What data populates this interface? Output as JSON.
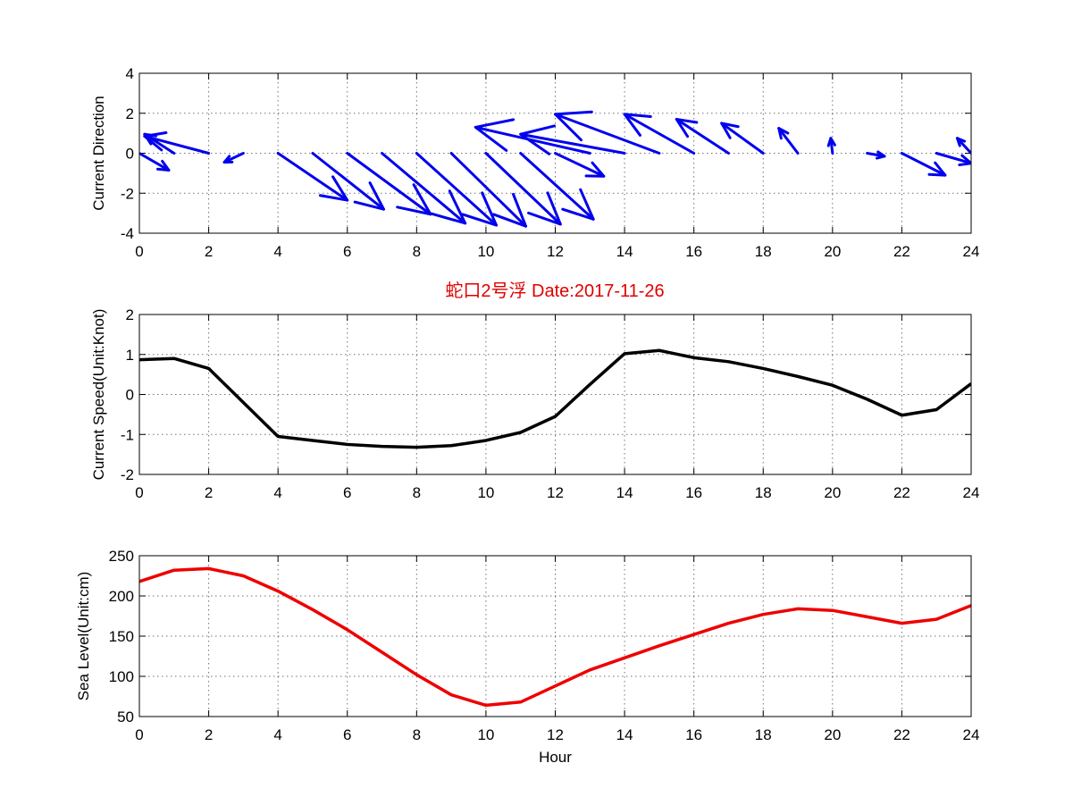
{
  "figure": {
    "title": "蛇口2号浮   Date:2017-11-26",
    "title_color": "#e00000"
  },
  "chart_data": [
    {
      "type": "quiver",
      "ylabel": "Current Direction",
      "xlim": [
        0,
        24
      ],
      "ylim": [
        -4,
        4
      ],
      "x_ticks": [
        0,
        2,
        4,
        6,
        8,
        10,
        12,
        14,
        16,
        18,
        20,
        22,
        24
      ],
      "y_ticks": [
        -4,
        -2,
        0,
        2,
        4
      ],
      "grid": true,
      "color": "#0000ee",
      "arrows": [
        {
          "x": 0,
          "u": 0.85,
          "v": -0.85
        },
        {
          "x": 1,
          "u": -0.85,
          "v": 0.95
        },
        {
          "x": 2,
          "u": -1.85,
          "v": 0.85
        },
        {
          "x": 3,
          "u": -0.55,
          "v": -0.45
        },
        {
          "x": 4,
          "u": 2.0,
          "v": -2.35
        },
        {
          "x": 5,
          "u": 2.05,
          "v": -2.8
        },
        {
          "x": 6,
          "u": 2.4,
          "v": -3.05
        },
        {
          "x": 7,
          "u": 2.4,
          "v": -3.5
        },
        {
          "x": 8,
          "u": 2.3,
          "v": -3.6
        },
        {
          "x": 9,
          "u": 2.15,
          "v": -3.65
        },
        {
          "x": 10,
          "u": 2.15,
          "v": -3.55
        },
        {
          "x": 11,
          "u": 2.1,
          "v": -3.3
        },
        {
          "x": 12,
          "u": 1.4,
          "v": -1.15
        },
        {
          "x": 13,
          "u": -3.3,
          "v": 1.3
        },
        {
          "x": 14,
          "u": -3.0,
          "v": 0.95
        },
        {
          "x": 15,
          "u": -3.0,
          "v": 1.95
        },
        {
          "x": 16,
          "u": -2.0,
          "v": 1.95
        },
        {
          "x": 17,
          "u": -1.5,
          "v": 1.7
        },
        {
          "x": 18,
          "u": -1.2,
          "v": 1.5
        },
        {
          "x": 19,
          "u": -0.55,
          "v": 1.25
        },
        {
          "x": 20,
          "u": -0.05,
          "v": 0.75
        },
        {
          "x": 21,
          "u": 0.5,
          "v": -0.15
        },
        {
          "x": 22,
          "u": 1.25,
          "v": -1.1
        },
        {
          "x": 23,
          "u": 1.0,
          "v": -0.5
        },
        {
          "x": 24,
          "u": -0.4,
          "v": 0.75
        }
      ]
    },
    {
      "type": "line",
      "ylabel": "Current Speed(Unit:Knot)",
      "xlim": [
        0,
        24
      ],
      "ylim": [
        -2,
        2
      ],
      "x_ticks": [
        0,
        2,
        4,
        6,
        8,
        10,
        12,
        14,
        16,
        18,
        20,
        22,
        24
      ],
      "y_ticks": [
        -2,
        -1,
        0,
        1,
        2
      ],
      "grid": true,
      "color": "#000000",
      "x": [
        0,
        1,
        2,
        3,
        4,
        5,
        6,
        7,
        8,
        9,
        10,
        11,
        12,
        13,
        14,
        15,
        16,
        17,
        18,
        19,
        20,
        21,
        22,
        23,
        24
      ],
      "y": [
        0.87,
        0.9,
        0.65,
        -0.2,
        -1.05,
        -1.15,
        -1.25,
        -1.3,
        -1.32,
        -1.28,
        -1.15,
        -0.95,
        -0.55,
        0.25,
        1.02,
        1.1,
        0.92,
        0.82,
        0.65,
        0.45,
        0.23,
        -0.12,
        -0.52,
        -0.38,
        0.27
      ]
    },
    {
      "type": "line",
      "xlabel": "Hour",
      "ylabel": "Sea Level(Unit:cm)",
      "xlim": [
        0,
        24
      ],
      "ylim": [
        50,
        250
      ],
      "x_ticks": [
        0,
        2,
        4,
        6,
        8,
        10,
        12,
        14,
        16,
        18,
        20,
        22,
        24
      ],
      "y_ticks": [
        50,
        100,
        150,
        200,
        250
      ],
      "grid": true,
      "color": "#ee0000",
      "x": [
        0,
        1,
        2,
        3,
        4,
        5,
        6,
        7,
        8,
        9,
        10,
        11,
        12,
        13,
        14,
        15,
        16,
        17,
        18,
        19,
        20,
        21,
        22,
        23,
        24
      ],
      "y": [
        218,
        232,
        234,
        225,
        206,
        183,
        158,
        130,
        102,
        77,
        64,
        68,
        88,
        108,
        123,
        138,
        152,
        166,
        177,
        184,
        182,
        174,
        166,
        171,
        188
      ]
    }
  ]
}
